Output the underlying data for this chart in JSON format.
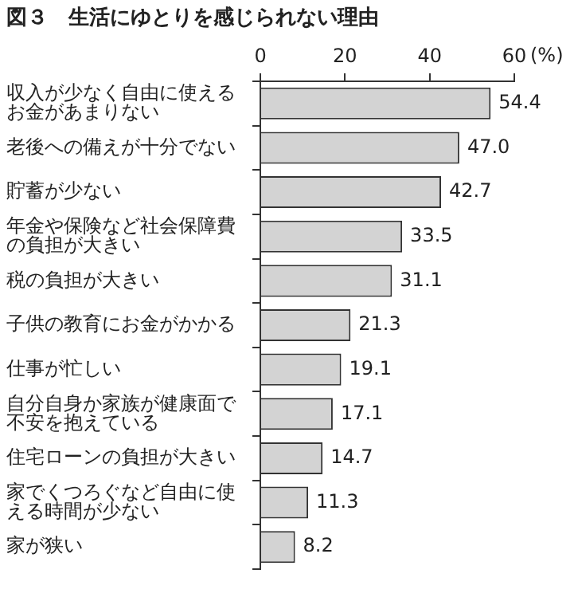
{
  "chart_data": {
    "type": "bar",
    "orientation": "horizontal",
    "title": "図３　生活にゆとりを感じられない理由",
    "xlabel": "(%)",
    "categories": [
      "収入が少なく自由に使えるお金があまりない",
      "老後への備えが十分でない",
      "貯蓄が少ない",
      "年金や保険など社会保障費の負担が大きい",
      "税の負担が大きい",
      "子供の教育にお金がかかる",
      "仕事が忙しい",
      "自分自身か家族が健康面で不安を抱えている",
      "住宅ローンの負担が大きい",
      "家でくつろぐなど自由に使える時間が少ない",
      "家が狭い"
    ],
    "values": [
      54.4,
      47.0,
      42.7,
      33.5,
      31.1,
      21.3,
      19.1,
      17.1,
      14.7,
      11.3,
      8.2
    ],
    "value_labels": [
      "54.4",
      "47.0",
      "42.7",
      "33.5",
      "31.1",
      "21.3",
      "19.1",
      "17.1",
      "14.7",
      "11.3",
      "8.2"
    ],
    "color": "#d3d3d3",
    "xlim": [
      0,
      60
    ],
    "xticks": [
      0,
      20,
      40,
      60
    ],
    "grid": false,
    "legend": false
  }
}
